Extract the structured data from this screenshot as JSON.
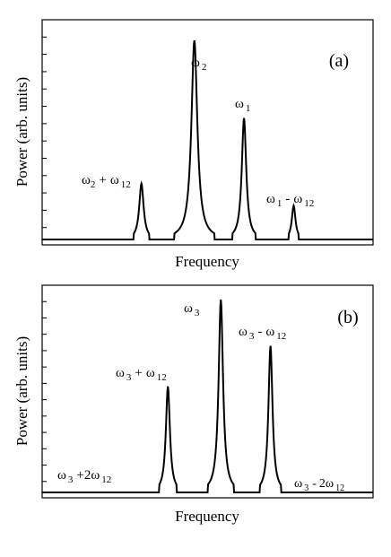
{
  "figure": {
    "panels": [
      {
        "id": "a",
        "label": "(a)",
        "ylabel": "Power (arb. units)",
        "xlabel": "Frequency"
      },
      {
        "id": "b",
        "label": "(b)",
        "ylabel": "Power (arb. units)",
        "xlabel": "Frequency"
      }
    ]
  },
  "chart_data": [
    {
      "type": "line",
      "title": "(a)",
      "xlabel": "Frequency",
      "ylabel": "Power (arb. units)",
      "xlim": [
        0,
        1
      ],
      "ylim": [
        0,
        1
      ],
      "baseline": 0.03,
      "peaks": [
        {
          "x": 0.3,
          "height": 0.28,
          "width": 0.012
        },
        {
          "x": 0.46,
          "height": 1.0,
          "width": 0.016
        },
        {
          "x": 0.61,
          "height": 0.61,
          "width": 0.012
        },
        {
          "x": 0.76,
          "height": 0.17,
          "width": 0.01
        }
      ],
      "annotations": [
        {
          "main": "ω",
          "sub1": "2",
          "op": "+",
          "main2": "ω",
          "sub2": "12"
        },
        {
          "main": "ω",
          "sub1": "2"
        },
        {
          "main": "ω",
          "sub1": "1"
        },
        {
          "main": "ω",
          "sub1": "1",
          "op": "-",
          "main2": "ω",
          "sub2": "12"
        }
      ]
    },
    {
      "type": "line",
      "title": "(b)",
      "xlabel": "Frequency",
      "ylabel": "Power (arb. units)",
      "xlim": [
        0,
        1
      ],
      "ylim": [
        0,
        1
      ],
      "baseline": 0.04,
      "peaks": [
        {
          "x": 0.21,
          "height": 0.04,
          "width": 0.01
        },
        {
          "x": 0.38,
          "height": 0.55,
          "width": 0.011
        },
        {
          "x": 0.54,
          "height": 1.0,
          "width": 0.012
        },
        {
          "x": 0.69,
          "height": 0.76,
          "width": 0.011
        },
        {
          "x": 0.85,
          "height": 0.015,
          "width": 0.006
        }
      ],
      "annotations": [
        {
          "main": "ω",
          "sub1": "3",
          "op": "+",
          "coef": "2",
          "main2": "ω",
          "sub2": "12"
        },
        {
          "main": "ω",
          "sub1": "3",
          "op": "+",
          "main2": "ω",
          "sub2": "12"
        },
        {
          "main": "ω",
          "sub1": "3"
        },
        {
          "main": "ω",
          "sub1": "3",
          "op": "-",
          "main2": "ω",
          "sub2": "12"
        },
        {
          "main": "ω",
          "sub1": "3",
          "op": "-",
          "coef": "2",
          "main2": "ω",
          "sub2": "12"
        }
      ]
    }
  ]
}
